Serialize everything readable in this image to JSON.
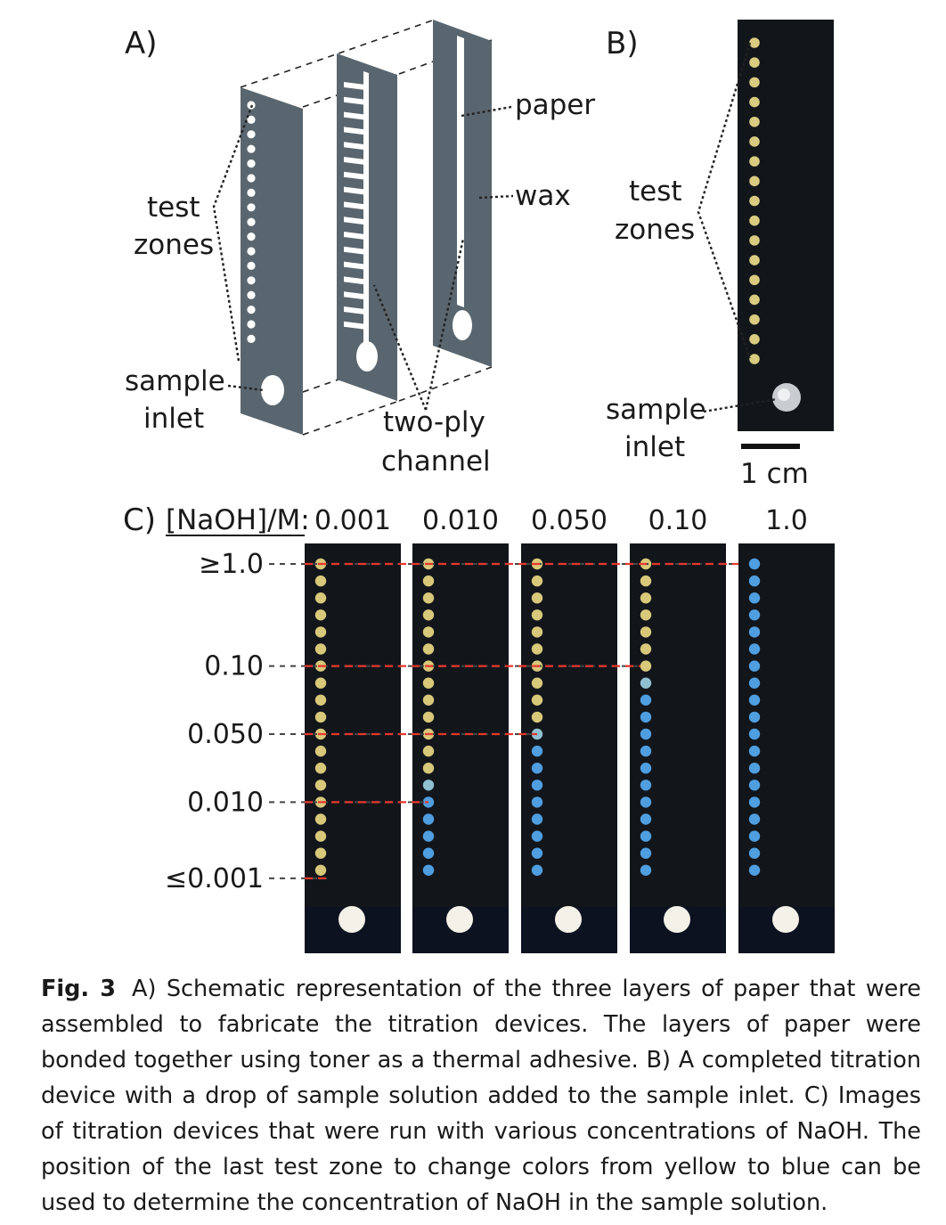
{
  "panel_a": {
    "label": "A)",
    "callouts": {
      "test_zones_1": "test",
      "test_zones_2": "zones",
      "sample_inlet_1": "sample",
      "sample_inlet_2": "inlet",
      "two_ply_1": "two-ply",
      "two_ply_2": "channel",
      "paper": "paper",
      "wax": "wax"
    }
  },
  "panel_b": {
    "label": "B)",
    "callouts": {
      "test_zones_1": "test",
      "test_zones_2": "zones",
      "sample_inlet_1": "sample",
      "sample_inlet_2": "inlet"
    },
    "scale_bar": "1 cm",
    "zone_count": 17
  },
  "panel_c": {
    "label": "C)",
    "header": "[NaOH]/M:",
    "devices": [
      {
        "concentration": "0.001",
        "blue_zones": 0
      },
      {
        "concentration": "0.010",
        "blue_zones": 6
      },
      {
        "concentration": "0.050",
        "blue_zones": 9
      },
      {
        "concentration": "0.10",
        "blue_zones": 12
      },
      {
        "concentration": "1.0",
        "blue_zones": 19
      }
    ],
    "zone_count": 19,
    "levels": [
      {
        "label": "≥1.0",
        "zone_index": 0
      },
      {
        "label": "0.10",
        "zone_index": 6
      },
      {
        "label": "0.050",
        "zone_index": 10
      },
      {
        "label": "0.010",
        "zone_index": 14
      },
      {
        "label": "≤0.001",
        "zone_index": 19
      }
    ],
    "colors": {
      "yellow": "#d8c87a",
      "blue": "#4f9ee0",
      "blue_light": "#8fc0d0",
      "guide": "#e8372c",
      "strip": "#12161b",
      "inlet": "#f4f1e8"
    }
  },
  "caption": {
    "label": "Fig. 3",
    "text": "A) Schematic representation of the three layers of paper that were assembled to fabricate the titration devices. The layers of paper were bonded together using toner as a thermal adhesive. B) A completed titration device with a drop of sample solution added to the sample inlet. C) Images of titration devices that were run with various concentrations of NaOH. The position of the last test zone to change colors from yellow to blue can be used to determine the concentration of NaOH in the sample solution."
  }
}
